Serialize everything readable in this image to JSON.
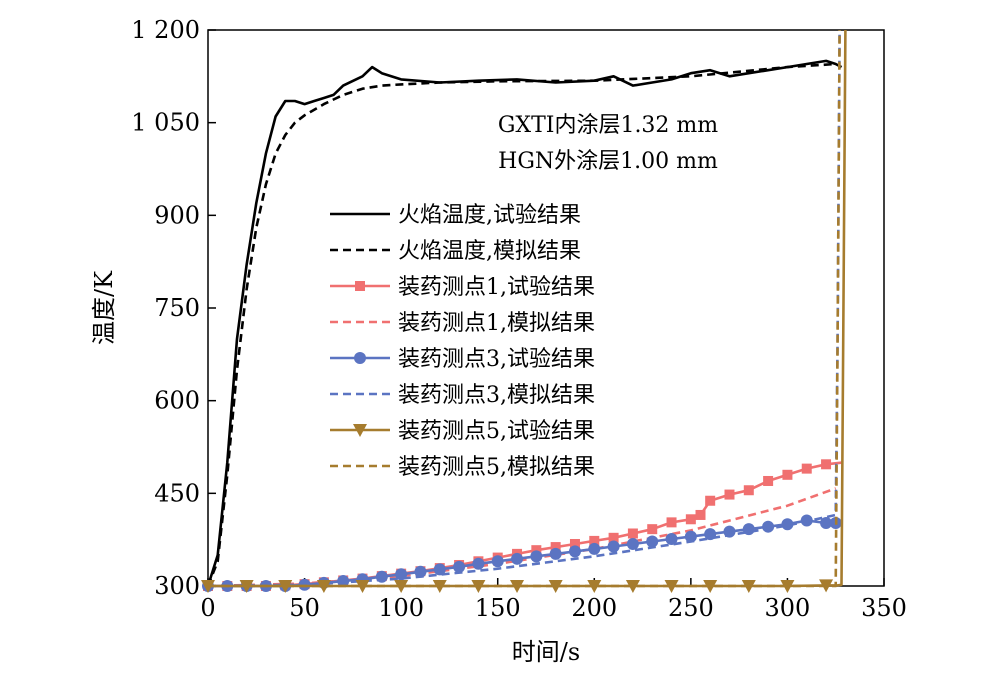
{
  "chart_data": {
    "type": "line",
    "xlabel": "时间/s",
    "ylabel": "温度/K",
    "xlim": [
      0,
      350
    ],
    "ylim": [
      300,
      1200
    ],
    "xticks": [
      0,
      50,
      100,
      150,
      200,
      250,
      300,
      350
    ],
    "yticks": [
      300,
      450,
      600,
      750,
      900,
      1050,
      1200
    ],
    "ytick_labels": [
      "300",
      "450",
      "600",
      "750",
      "900",
      "1 050",
      "1 200"
    ],
    "grid": false,
    "annotations": [
      "GXTI内涂层1.32 mm",
      "HGN外涂层1.00 mm"
    ],
    "legend_position": "inside-center",
    "series": [
      {
        "name": "火焰温度,试验结果",
        "color": "#000000",
        "dash": "solid",
        "marker": "none",
        "x": [
          0,
          5,
          10,
          15,
          20,
          25,
          30,
          35,
          40,
          45,
          50,
          55,
          60,
          65,
          70,
          80,
          85,
          90,
          100,
          120,
          140,
          160,
          180,
          200,
          210,
          220,
          230,
          240,
          250,
          260,
          270,
          280,
          290,
          300,
          310,
          320,
          325,
          328
        ],
        "y": [
          300,
          350,
          500,
          700,
          820,
          920,
          1000,
          1060,
          1085,
          1085,
          1080,
          1085,
          1090,
          1095,
          1110,
          1125,
          1140,
          1130,
          1120,
          1115,
          1118,
          1120,
          1115,
          1118,
          1125,
          1110,
          1115,
          1120,
          1130,
          1135,
          1125,
          1130,
          1135,
          1140,
          1145,
          1150,
          1145,
          1140
        ]
      },
      {
        "name": "火焰温度,模拟结果",
        "color": "#000000",
        "dash": "dashed",
        "marker": "none",
        "x": [
          0,
          5,
          10,
          15,
          20,
          25,
          30,
          35,
          40,
          45,
          50,
          60,
          70,
          80,
          90,
          100,
          120,
          150,
          200,
          250,
          300,
          325
        ],
        "y": [
          300,
          340,
          480,
          650,
          780,
          880,
          950,
          1000,
          1030,
          1050,
          1062,
          1080,
          1095,
          1105,
          1110,
          1112,
          1115,
          1117,
          1118,
          1125,
          1140,
          1145
        ]
      },
      {
        "name": "装药测点1,试验结果",
        "color": "#f07070",
        "dash": "solid",
        "marker": "square",
        "x": [
          0,
          10,
          20,
          30,
          40,
          50,
          60,
          70,
          80,
          90,
          100,
          110,
          120,
          130,
          140,
          150,
          160,
          170,
          180,
          190,
          200,
          210,
          220,
          230,
          240,
          250,
          255,
          260,
          270,
          280,
          290,
          300,
          310,
          320,
          329
        ],
        "y": [
          300,
          300,
          300,
          300,
          301,
          303,
          306,
          309,
          312,
          316,
          320,
          324,
          329,
          334,
          340,
          346,
          352,
          358,
          363,
          368,
          373,
          378,
          385,
          392,
          403,
          408,
          415,
          438,
          448,
          455,
          470,
          480,
          490,
          497,
          500
        ]
      },
      {
        "name": "装药测点1,模拟结果",
        "color": "#f07070",
        "dash": "dashed",
        "marker": "none",
        "x": [
          0,
          50,
          100,
          150,
          200,
          250,
          300,
          325
        ],
        "y": [
          300,
          304,
          316,
          336,
          360,
          390,
          430,
          458
        ]
      },
      {
        "name": "装药测点3,试验结果",
        "color": "#5b74c2",
        "dash": "solid",
        "marker": "circle",
        "x": [
          0,
          10,
          20,
          30,
          40,
          50,
          60,
          70,
          80,
          90,
          100,
          110,
          120,
          130,
          140,
          150,
          160,
          170,
          180,
          190,
          200,
          210,
          220,
          230,
          240,
          250,
          260,
          270,
          280,
          290,
          300,
          310,
          320,
          325
        ],
        "y": [
          300,
          300,
          300,
          300,
          300,
          302,
          305,
          308,
          311,
          315,
          319,
          323,
          327,
          331,
          336,
          340,
          344,
          348,
          352,
          356,
          360,
          364,
          368,
          372,
          376,
          380,
          384,
          388,
          392,
          396,
          400,
          406,
          402,
          402
        ]
      },
      {
        "name": "装药测点3,模拟结果",
        "color": "#5b74c2",
        "dash": "dashed",
        "marker": "none",
        "x": [
          0,
          50,
          100,
          150,
          200,
          250,
          300,
          325,
          326,
          327
        ],
        "y": [
          300,
          302,
          312,
          328,
          348,
          372,
          398,
          415,
          700,
          1200
        ]
      },
      {
        "name": "装药测点5,试验结果",
        "color": "#a67c2e",
        "dash": "solid",
        "marker": "triangle-down",
        "x": [
          0,
          20,
          40,
          60,
          80,
          100,
          120,
          140,
          160,
          180,
          200,
          220,
          240,
          260,
          280,
          300,
          320,
          326,
          328,
          330
        ],
        "y": [
          300,
          300,
          300,
          300,
          300,
          300,
          300,
          300,
          300,
          300,
          300,
          300,
          300,
          300,
          300,
          300,
          301,
          301,
          302,
          1200
        ]
      },
      {
        "name": "装药测点5,模拟结果",
        "color": "#a67c2e",
        "dash": "dashed",
        "marker": "none",
        "x": [
          0,
          100,
          200,
          300,
          325,
          326,
          327
        ],
        "y": [
          300,
          300,
          300,
          300,
          300,
          700,
          1200
        ]
      }
    ]
  }
}
